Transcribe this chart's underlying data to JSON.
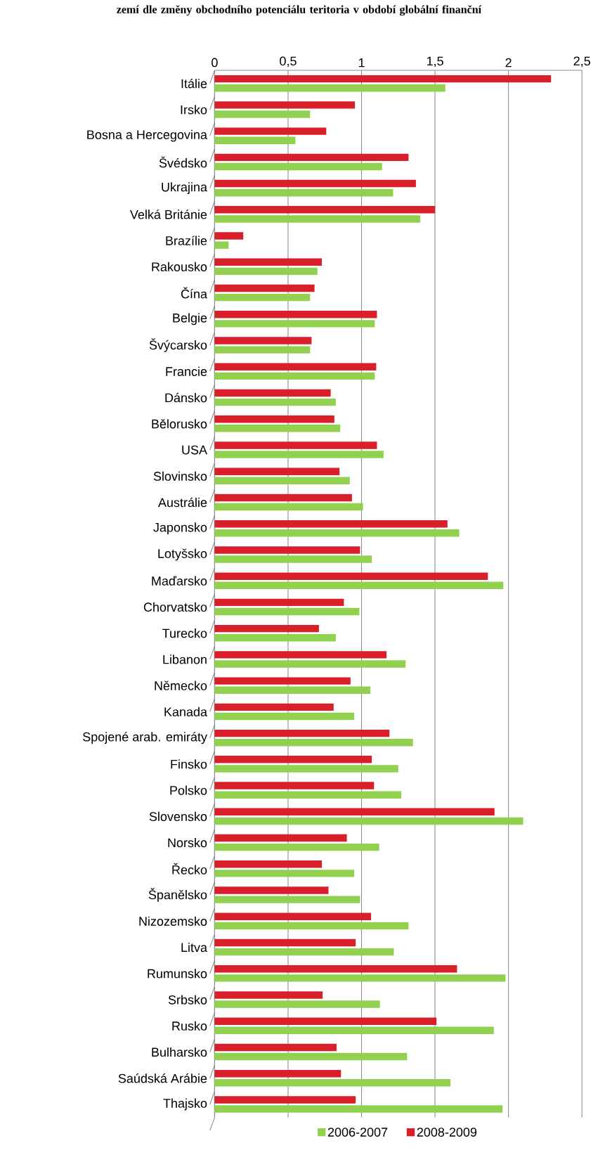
{
  "chart_data": {
    "type": "bar",
    "orientation": "horizontal",
    "title": "zemí dle změny obchodního potenciálu teritoria v období globální finanční",
    "categories": [
      "Itálie",
      "Irsko",
      "Bosna a Hercegovina",
      "Švédsko",
      "Ukrajina",
      "Velká Británie",
      "Brazílie",
      "Rakousko",
      "Čína",
      "Belgie",
      "Švýcarsko",
      "Francie",
      "Dánsko",
      "Bělorusko",
      "USA",
      "Slovinsko",
      "Austrálie",
      "Japonsko",
      "Lotyšsko",
      "Maďarsko",
      "Chorvatsko",
      "Turecko",
      "Libanon",
      "Německo",
      "Kanada",
      "Spojené arab. emiráty",
      "Finsko",
      "Polsko",
      "Slovensko",
      "Norsko",
      "Řecko",
      "Španělsko",
      "Nizozemsko",
      "Litva",
      "Rumunsko",
      "Srbsko",
      "Rusko",
      "Bulharsko",
      "Saúdská Arábie",
      "Thajsko"
    ],
    "series": [
      {
        "name": "2006-2007",
        "color": "#92d050",
        "values": [
          1.57,
          0.65,
          0.55,
          1.14,
          1.215,
          1.4,
          0.095,
          0.7,
          0.65,
          1.09,
          0.65,
          1.09,
          0.825,
          0.855,
          1.15,
          0.92,
          1.01,
          1.665,
          1.07,
          1.965,
          0.985,
          0.825,
          1.3,
          1.06,
          0.95,
          1.35,
          1.25,
          1.27,
          2.1,
          1.12,
          0.95,
          0.99,
          1.32,
          1.22,
          1.98,
          1.125,
          1.9,
          1.31,
          1.605,
          1.96
        ]
      },
      {
        "name": "2008-2009",
        "color": "#d9202a",
        "values": [
          2.29,
          0.955,
          0.76,
          1.32,
          1.37,
          1.5,
          0.195,
          0.73,
          0.68,
          1.105,
          0.66,
          1.1,
          0.79,
          0.815,
          1.105,
          0.85,
          0.935,
          1.585,
          0.99,
          1.86,
          0.88,
          0.71,
          1.17,
          0.925,
          0.81,
          1.19,
          1.07,
          1.085,
          1.905,
          0.9,
          0.73,
          0.775,
          1.065,
          0.96,
          1.65,
          0.735,
          1.51,
          0.83,
          0.86,
          0.96
        ]
      }
    ],
    "xlim": [
      0,
      2.5
    ],
    "xticks": [
      0,
      {
        "value": 0.5,
        "label": "0,5"
      },
      1,
      {
        "value": 1.5,
        "label": "1,5"
      },
      2,
      {
        "value": 2.5,
        "label": "2,5"
      }
    ],
    "grid": "x",
    "legend": "bottom"
  }
}
